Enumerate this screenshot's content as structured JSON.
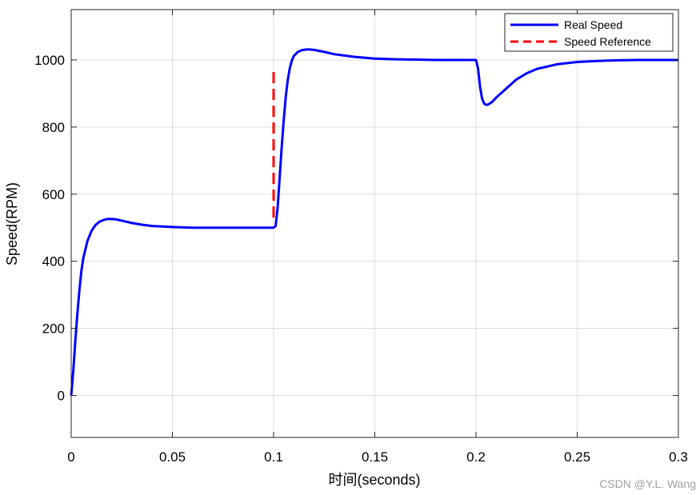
{
  "chart_data": {
    "type": "line",
    "xlabel": "时间(seconds)",
    "ylabel": "Speed(RPM)",
    "xlim": [
      0,
      0.3
    ],
    "ylim": [
      -125,
      1150
    ],
    "xticks": [
      0,
      0.05,
      0.1,
      0.15,
      0.2,
      0.25,
      0.3
    ],
    "xtick_labels": [
      "0",
      "0.05",
      "0.1",
      "0.15",
      "0.2",
      "0.25",
      "0.3"
    ],
    "yticks": [
      0,
      200,
      400,
      600,
      800,
      1000
    ],
    "ytick_labels": [
      "0",
      "200",
      "400",
      "600",
      "800",
      "1000"
    ],
    "grid": true,
    "legend_position": "top-right",
    "series": [
      {
        "name": "Real Speed",
        "color": "#0000ff",
        "style": "solid",
        "x": [
          0,
          0.001,
          0.002,
          0.003,
          0.004,
          0.005,
          0.006,
          0.008,
          0.01,
          0.012,
          0.014,
          0.016,
          0.018,
          0.02,
          0.022,
          0.025,
          0.03,
          0.035,
          0.04,
          0.05,
          0.06,
          0.07,
          0.08,
          0.09,
          0.1,
          0.101,
          0.102,
          0.103,
          0.104,
          0.105,
          0.106,
          0.107,
          0.108,
          0.109,
          0.11,
          0.112,
          0.114,
          0.116,
          0.118,
          0.12,
          0.125,
          0.13,
          0.14,
          0.15,
          0.16,
          0.17,
          0.18,
          0.19,
          0.2,
          0.201,
          0.202,
          0.203,
          0.204,
          0.205,
          0.206,
          0.208,
          0.21,
          0.215,
          0.22,
          0.225,
          0.23,
          0.24,
          0.25,
          0.26,
          0.27,
          0.28,
          0.29,
          0.3
        ],
        "y": [
          0,
          70,
          160,
          240,
          310,
          370,
          410,
          460,
          490,
          508,
          518,
          523,
          526,
          526,
          525,
          521,
          514,
          509,
          505,
          502,
          500,
          500,
          500,
          500,
          500,
          505,
          560,
          650,
          740,
          820,
          890,
          940,
          975,
          998,
          1012,
          1024,
          1029,
          1031,
          1031,
          1030,
          1024,
          1017,
          1009,
          1004,
          1002,
          1001,
          1000,
          1000,
          1000,
          975,
          920,
          885,
          870,
          866,
          867,
          875,
          888,
          915,
          942,
          960,
          973,
          987,
          994,
          997,
          999,
          1000,
          1000,
          1000
        ]
      },
      {
        "name": "Speed Reference",
        "color": "#ff0000",
        "style": "dashed",
        "x": [
          0.1,
          0.1
        ],
        "y": [
          530,
          975
        ]
      }
    ]
  },
  "watermark": "CSDN @Y.L. Wang"
}
